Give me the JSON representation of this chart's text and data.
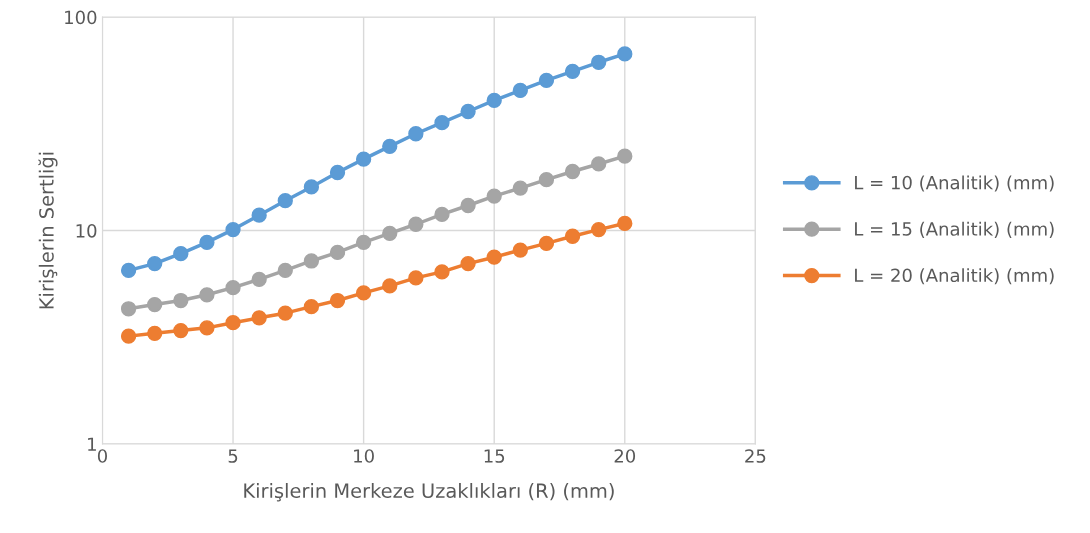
{
  "chart_data": {
    "type": "line",
    "xlabel": "Kirişlerin Merkeze Uzaklıkları (R) (mm)",
    "ylabel": "Kirişlerin Sertliği",
    "x": [
      1,
      2,
      3,
      4,
      5,
      6,
      7,
      8,
      9,
      10,
      11,
      12,
      13,
      14,
      15,
      16,
      17,
      18,
      19,
      20
    ],
    "series": [
      {
        "name": "L = 10 (Analitik) (mm)",
        "color": "#5b9bd5",
        "values": [
          6.5,
          7.0,
          7.8,
          8.8,
          10.1,
          11.8,
          13.8,
          16.0,
          18.7,
          21.6,
          24.8,
          28.4,
          32.0,
          36.1,
          40.7,
          45.3,
          50.5,
          55.7,
          61.4,
          67.2
        ]
      },
      {
        "name": "L = 15 (Analitik) (mm)",
        "color": "#a5a5a5",
        "values": [
          4.3,
          4.5,
          4.7,
          5.0,
          5.4,
          5.9,
          6.5,
          7.2,
          7.9,
          8.8,
          9.7,
          10.7,
          11.9,
          13.1,
          14.5,
          15.8,
          17.3,
          18.9,
          20.5,
          22.3
        ]
      },
      {
        "name": "L = 20 (Analitik) (mm)",
        "color": "#ed7d31",
        "values": [
          3.2,
          3.3,
          3.4,
          3.5,
          3.7,
          3.9,
          4.1,
          4.4,
          4.7,
          5.1,
          5.5,
          6.0,
          6.4,
          7.0,
          7.5,
          8.1,
          8.7,
          9.4,
          10.1,
          10.8
        ]
      }
    ],
    "xlim": [
      0,
      25
    ],
    "xticks": [
      0,
      5,
      10,
      15,
      20,
      25
    ],
    "ylim": [
      1,
      100
    ],
    "yticks": [
      1,
      10,
      100
    ],
    "log": "y",
    "grid": true,
    "legend": "right",
    "marker": "circle",
    "line_style": "solid"
  }
}
